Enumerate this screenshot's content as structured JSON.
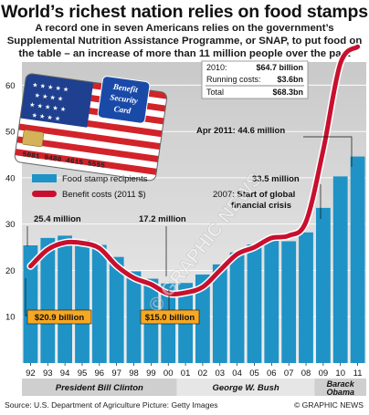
{
  "header": {
    "title": "World’s richest nation relies on food stamps",
    "subtitle": "A record one in seven Americans relies on the government’s Supplemental Nutrition Assistance Programme, or SNAP, to put food on the table – an increase of more than 11 million people over the past three years"
  },
  "card": {
    "line1": "Benefit",
    "line2": "Security",
    "line3": "Card",
    "number": "5081 9480 4615 5555"
  },
  "footer": {
    "source": "Source: U.S. Department of Agriculture   Picture: Getty Images",
    "copyright": "© GRAPHIC NEWS"
  },
  "watermark": "© GRAPHIC NEWS",
  "chart_data": {
    "type": "bar",
    "categories": [
      "92",
      "93",
      "94",
      "95",
      "96",
      "97",
      "98",
      "99",
      "00",
      "01",
      "02",
      "03",
      "04",
      "05",
      "06",
      "07",
      "08",
      "09",
      "10",
      "11"
    ],
    "x_values": [
      1992,
      1993,
      1994,
      1995,
      1996,
      1997,
      1998,
      1999,
      2000,
      2001,
      2002,
      2003,
      2004,
      2005,
      2006,
      2007,
      2008,
      2009,
      2010,
      2011
    ],
    "series": [
      {
        "name": "Food stamp recipients",
        "kind": "bar",
        "color": "#1f93c6",
        "values": [
          25.4,
          27.0,
          27.5,
          26.6,
          25.5,
          22.9,
          19.8,
          18.2,
          17.2,
          17.3,
          19.1,
          21.3,
          23.9,
          25.6,
          26.5,
          26.3,
          28.2,
          33.5,
          40.3,
          44.6
        ]
      },
      {
        "name": "Benefit costs (2011 $)",
        "kind": "line",
        "color": "#c8102e",
        "values": [
          20.9,
          24.5,
          26.0,
          25.9,
          24.8,
          21.0,
          18.4,
          17.0,
          15.0,
          15.2,
          16.4,
          20.0,
          23.5,
          25.0,
          27.0,
          27.5,
          30.5,
          46.0,
          64.7,
          68.3
        ]
      }
    ],
    "ylim": [
      0,
      65
    ],
    "yticks": [
      10,
      20,
      30,
      40,
      50,
      60
    ],
    "grid": true,
    "legend": "middle-left",
    "presidents": [
      {
        "label": "President Bill Clinton",
        "from": 1992,
        "to": 2000
      },
      {
        "label": "George W. Bush",
        "from": 2001,
        "to": 2008
      },
      {
        "label": "Barack Obama",
        "from": 2009,
        "to": 2011
      }
    ],
    "annotations": {
      "recipients_1992": "25.4 million",
      "recipients_2000": "17.2 million",
      "recipients_2009": "33.5 million",
      "recipients_2011": "Apr 2011: 44.6 million",
      "cost_1992": "$20.9 billion",
      "cost_2000": "$15.0 billion",
      "crisis": "2007: Start of global financial crisis",
      "cost_box": [
        {
          "label": "2010:",
          "value": "$64.7 billion"
        },
        {
          "label": "Running costs:",
          "value": "$3.6bn"
        },
        {
          "label": "Total",
          "value": "$68.3bn"
        }
      ]
    }
  }
}
